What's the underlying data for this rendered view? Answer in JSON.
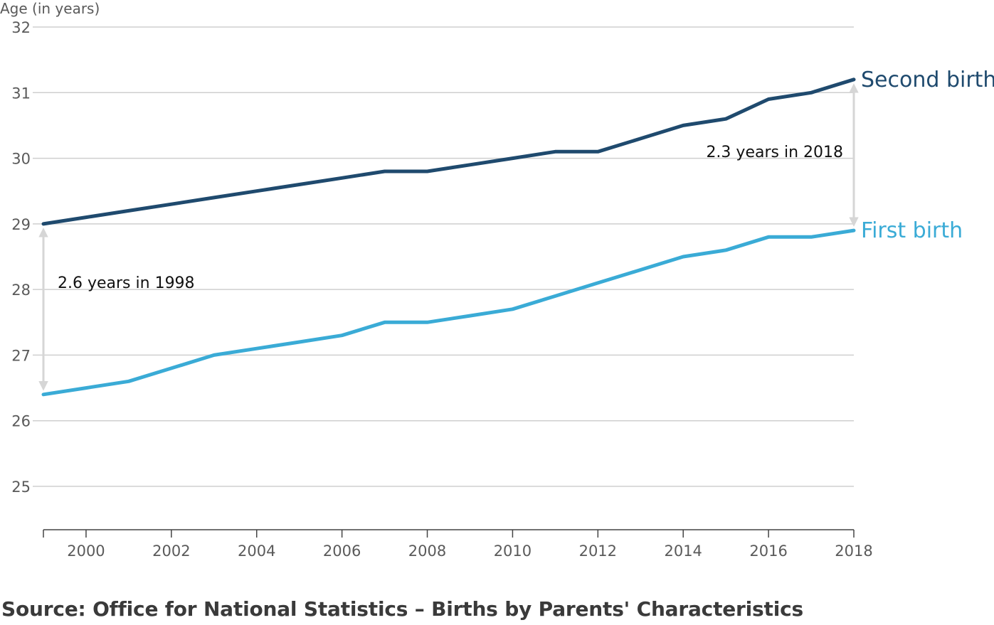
{
  "y_axis_title": "Age (in years)",
  "source": "Source: Office for National Statistics – Births by Parents' Characteristics",
  "annotations": {
    "gap_1998": "2.6 years in 1998",
    "gap_2018": "2.3 years in 2018"
  },
  "colors": {
    "second_birth": "#1f4a6e",
    "first_birth": "#3aabd6",
    "grid": "#cfcfcf",
    "arrow": "#d6d6d6",
    "tick_text": "#5a5a5a"
  },
  "chart_data": {
    "type": "line",
    "title": "",
    "xlabel": "",
    "ylabel": "Age (in years)",
    "xlim": [
      1999,
      2018
    ],
    "ylim": [
      25,
      32
    ],
    "x_ticks": [
      2000,
      2002,
      2004,
      2006,
      2008,
      2010,
      2012,
      2014,
      2016,
      2018
    ],
    "y_ticks": [
      25,
      26,
      27,
      28,
      29,
      30,
      31,
      32
    ],
    "grid": true,
    "legend": "direct labels at line ends",
    "x": [
      1999,
      2000,
      2001,
      2002,
      2003,
      2004,
      2005,
      2006,
      2007,
      2008,
      2009,
      2010,
      2011,
      2012,
      2013,
      2014,
      2015,
      2016,
      2017,
      2018
    ],
    "series": [
      {
        "name": "Second birth",
        "values": [
          29.0,
          29.1,
          29.2,
          29.3,
          29.4,
          29.5,
          29.6,
          29.7,
          29.8,
          29.8,
          29.9,
          30.0,
          30.1,
          30.1,
          30.3,
          30.5,
          30.6,
          30.9,
          31.0,
          31.2
        ]
      },
      {
        "name": "First birth",
        "values": [
          26.4,
          26.5,
          26.6,
          26.8,
          27.0,
          27.1,
          27.2,
          27.3,
          27.5,
          27.5,
          27.6,
          27.7,
          27.9,
          28.1,
          28.3,
          28.5,
          28.6,
          28.8,
          28.8,
          28.9
        ]
      }
    ]
  }
}
